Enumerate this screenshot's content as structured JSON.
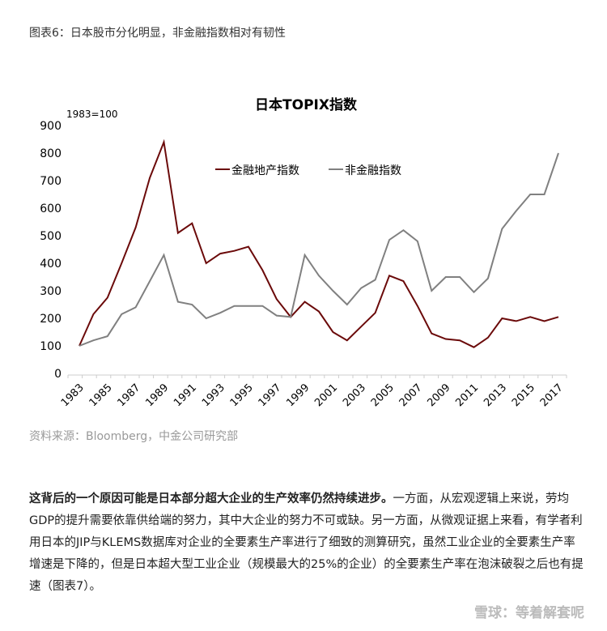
{
  "caption": "图表6：日本股市分化明显，非金融指数相对有韧性",
  "chart_data": {
    "type": "line",
    "title": "日本TOPIX指数",
    "ylabel": "1983=100",
    "ylim": [
      0,
      900
    ],
    "yticks": [
      0,
      100,
      200,
      300,
      400,
      500,
      600,
      700,
      800,
      900
    ],
    "x": [
      1983,
      1984,
      1985,
      1986,
      1987,
      1988,
      1989,
      1990,
      1991,
      1992,
      1993,
      1994,
      1995,
      1996,
      1997,
      1998,
      1999,
      2000,
      2001,
      2002,
      2003,
      2004,
      2005,
      2006,
      2007,
      2008,
      2009,
      2010,
      2011,
      2012,
      2013,
      2014,
      2015,
      2016,
      2017
    ],
    "xticks": [
      "1983",
      "1985",
      "1987",
      "1989",
      "1991",
      "1993",
      "1995",
      "1997",
      "1999",
      "2001",
      "2003",
      "2005",
      "2007",
      "2009",
      "2011",
      "2013",
      "2015",
      "2017"
    ],
    "legend": "top",
    "grid": false,
    "series": [
      {
        "name": "金融地产指数",
        "color": "#6b0a0a",
        "values": [
          100,
          215,
          275,
          400,
          530,
          710,
          840,
          510,
          545,
          400,
          435,
          445,
          460,
          375,
          270,
          205,
          260,
          225,
          150,
          120,
          170,
          220,
          355,
          335,
          245,
          145,
          125,
          120,
          95,
          130,
          200,
          190,
          205,
          190,
          205
        ]
      },
      {
        "name": "非金融指数",
        "color": "#808080",
        "values": [
          100,
          120,
          135,
          215,
          240,
          335,
          430,
          260,
          250,
          200,
          220,
          245,
          245,
          245,
          210,
          205,
          430,
          355,
          300,
          250,
          310,
          340,
          485,
          520,
          480,
          300,
          350,
          350,
          295,
          345,
          525,
          590,
          650,
          650,
          800
        ]
      }
    ]
  },
  "source": "资料来源：Bloomberg，中金公司研究部",
  "paragraph": {
    "bold": "这背后的一个原因可能是日本部分超大企业的生产效率仍然持续进步。",
    "text": "一方面，从宏观逻辑上来说，劳均GDP的提升需要依靠供给端的努力，其中大企业的努力不可或缺。另一方面，从微观证据上来看，有学者利用日本的JIP与KLEMS数据库对企业的全要素生产率进行了细致的测算研究，虽然工业企业的全要素生产率增速是下降的，但是日本超大型工业企业（规模最大的25%的企业）的全要素生产率在泡沫破裂之后也有提速（图表7）。"
  },
  "watermark": "雪球：等着解套呢"
}
